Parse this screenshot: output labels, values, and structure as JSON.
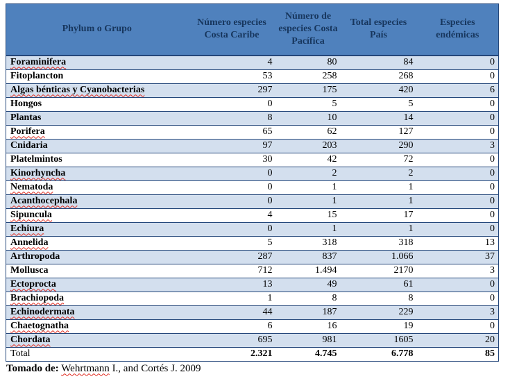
{
  "colors": {
    "header-bg": "#4f81bd",
    "header-text": "#17365d",
    "band-bg": "#d3dfee",
    "row-bg": "#ffffff",
    "border": "#24477a",
    "text": "#000000",
    "squiggle": "#e02b20"
  },
  "table": {
    "columns": [
      "Phylum o Grupo",
      "Número especies Costa Caribe",
      "Número de especies Costa Pacífica",
      "Total especies País",
      "Especies endémicas"
    ],
    "rows": [
      {
        "name": "Foraminifera",
        "caribe": "4",
        "pacifica": "80",
        "total": "84",
        "endemicas": "0",
        "misspelled": true
      },
      {
        "name": "Fitoplancton",
        "caribe": "53",
        "pacifica": "258",
        "total": "268",
        "endemicas": "0",
        "misspelled": false
      },
      {
        "name": "Algas bénticas y Cyanobacterias",
        "caribe": "297",
        "pacifica": "175",
        "total": "420",
        "endemicas": "6",
        "misspelled": true
      },
      {
        "name": "Hongos",
        "caribe": "0",
        "pacifica": "5",
        "total": "5",
        "endemicas": "0",
        "misspelled": false
      },
      {
        "name": "Plantas",
        "caribe": "8",
        "pacifica": "10",
        "total": "14",
        "endemicas": "0",
        "misspelled": false
      },
      {
        "name": "Porifera",
        "caribe": "65",
        "pacifica": "62",
        "total": "127",
        "endemicas": "0",
        "misspelled": true
      },
      {
        "name": "Cnidaria",
        "caribe": "97",
        "pacifica": "203",
        "total": "290",
        "endemicas": "3",
        "misspelled": false
      },
      {
        "name": "Platelmintos",
        "caribe": "30",
        "pacifica": "42",
        "total": "72",
        "endemicas": "0",
        "misspelled": false
      },
      {
        "name": "Kinorhyncha",
        "caribe": "0",
        "pacifica": "2",
        "total": "2",
        "endemicas": "0",
        "misspelled": true
      },
      {
        "name": "Nematoda",
        "caribe": "0",
        "pacifica": "1",
        "total": "1",
        "endemicas": "0",
        "misspelled": true
      },
      {
        "name": "Acanthocephala",
        "caribe": "0",
        "pacifica": "1",
        "total": "1",
        "endemicas": "0",
        "misspelled": true
      },
      {
        "name": "Sipuncula",
        "caribe": "4",
        "pacifica": "15",
        "total": "17",
        "endemicas": "0",
        "misspelled": true
      },
      {
        "name": "Echiura",
        "caribe": "0",
        "pacifica": "1",
        "total": "1",
        "endemicas": "0",
        "misspelled": true
      },
      {
        "name": "Annelida",
        "caribe": "5",
        "pacifica": "318",
        "total": "318",
        "endemicas": "13",
        "misspelled": true
      },
      {
        "name": "Arthropoda",
        "caribe": "287",
        "pacifica": "837",
        "total": "1.066",
        "endemicas": "37",
        "misspelled": false
      },
      {
        "name": "Mollusca",
        "caribe": "712",
        "pacifica": "1.494",
        "total": "2170",
        "endemicas": "3",
        "misspelled": false
      },
      {
        "name": "Ectoprocta",
        "caribe": "13",
        "pacifica": "49",
        "total": "61",
        "endemicas": "0",
        "misspelled": true
      },
      {
        "name": "Brachiopoda",
        "caribe": "1",
        "pacifica": "8",
        "total": "8",
        "endemicas": "0",
        "misspelled": true
      },
      {
        "name": "Echinodermata",
        "caribe": "44",
        "pacifica": "187",
        "total": "229",
        "endemicas": "3",
        "misspelled": true
      },
      {
        "name": "Chaetognatha",
        "caribe": "6",
        "pacifica": "16",
        "total": "19",
        "endemicas": "0",
        "misspelled": true
      },
      {
        "name": "Chordata",
        "caribe": "695",
        "pacifica": "981",
        "total": "1605",
        "endemicas": "20",
        "misspelled": true
      }
    ],
    "total_row": {
      "name": "Total",
      "caribe": "2.321",
      "pacifica": "4.745",
      "total": "6.778",
      "endemicas": "85"
    }
  },
  "footer": {
    "label": "Tomado de:",
    "author_word": "Wehrtmann",
    "rest": "I., and Cortés J. 2009"
  }
}
